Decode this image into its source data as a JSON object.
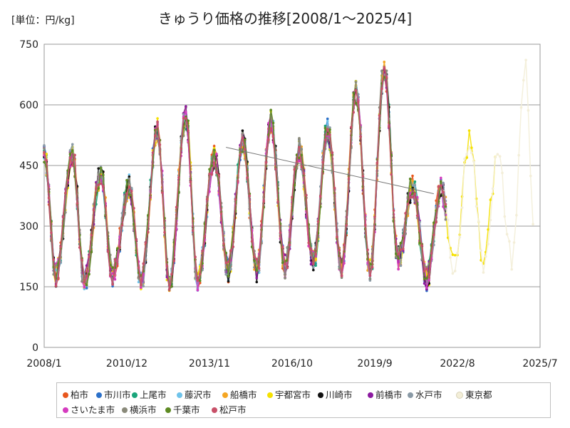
{
  "unit_label": "[単位：円/kg]",
  "title": "きゅうり価格の推移[2008/1～2025/4]",
  "chart_data": {
    "type": "line",
    "title": "きゅうり価格の推移[2008/1～2025/4]",
    "ylabel": "[単位：円/kg]",
    "xlabel": "",
    "ylim": [
      0,
      750
    ],
    "y_ticks": [
      0,
      150,
      300,
      450,
      600,
      750
    ],
    "x_tick_labels": [
      "2008/1",
      "2010/12",
      "2013/11",
      "2016/10",
      "2019/9",
      "2022/8",
      "2025/7"
    ],
    "grid": "horizontal",
    "legend_position": "bottom",
    "trendline": {
      "from": {
        "x": "2014/6",
        "y": 495
      },
      "to": {
        "x": "2021/10",
        "y": 380
      }
    },
    "series": [
      {
        "name": "柏市",
        "color": "#e8571e"
      },
      {
        "name": "市川市",
        "color": "#2b70c9"
      },
      {
        "name": "上尾市",
        "color": "#1aa57b"
      },
      {
        "name": "藤沢市",
        "color": "#6fc3ea"
      },
      {
        "name": "船橋市",
        "color": "#f5a623"
      },
      {
        "name": "宇都宮市",
        "color": "#f5e100"
      },
      {
        "name": "川崎市",
        "color": "#111111"
      },
      {
        "name": "前橋市",
        "color": "#8c1aa0"
      },
      {
        "name": "水戸市",
        "color": "#8a9aa6"
      },
      {
        "name": "東京都",
        "color": "#f3eed8"
      },
      {
        "name": "さいたま市",
        "color": "#d53bbf"
      },
      {
        "name": "横浜市",
        "color": "#8a8a7a"
      },
      {
        "name": "千葉市",
        "color": "#5d8a22"
      },
      {
        "name": "松戸市",
        "color": "#c85068"
      }
    ],
    "key_points": [
      {
        "x": "2008/1",
        "y": 480
      },
      {
        "x": "2008/6",
        "y": 180
      },
      {
        "x": "2009/1",
        "y": 480
      },
      {
        "x": "2009/6",
        "y": 160
      },
      {
        "x": "2010/1",
        "y": 430
      },
      {
        "x": "2010/6",
        "y": 180
      },
      {
        "x": "2011/1",
        "y": 400
      },
      {
        "x": "2011/6",
        "y": 160
      },
      {
        "x": "2012/1",
        "y": 540
      },
      {
        "x": "2012/6",
        "y": 160
      },
      {
        "x": "2013/1",
        "y": 570
      },
      {
        "x": "2013/6",
        "y": 160
      },
      {
        "x": "2014/1",
        "y": 470
      },
      {
        "x": "2014/7",
        "y": 190
      },
      {
        "x": "2015/1",
        "y": 510
      },
      {
        "x": "2015/7",
        "y": 190
      },
      {
        "x": "2016/1",
        "y": 560
      },
      {
        "x": "2016/7",
        "y": 200
      },
      {
        "x": "2017/1",
        "y": 490
      },
      {
        "x": "2017/7",
        "y": 210
      },
      {
        "x": "2018/1",
        "y": 540
      },
      {
        "x": "2018/7",
        "y": 200
      },
      {
        "x": "2019/1",
        "y": 630
      },
      {
        "x": "2019/7",
        "y": 190
      },
      {
        "x": "2020/1",
        "y": 690
      },
      {
        "x": "2020/7",
        "y": 220
      },
      {
        "x": "2021/1",
        "y": 400
      },
      {
        "x": "2021/7",
        "y": 170
      },
      {
        "x": "2022/1",
        "y": 390
      },
      {
        "x": "2022/7",
        "y": 200
      },
      {
        "x": "2023/1",
        "y": 520
      },
      {
        "x": "2023/7",
        "y": 210
      },
      {
        "x": "2024/1",
        "y": 470
      },
      {
        "x": "2024/7",
        "y": 220
      },
      {
        "x": "2025/1",
        "y": 700
      },
      {
        "x": "2025/4",
        "y": 320
      }
    ]
  }
}
